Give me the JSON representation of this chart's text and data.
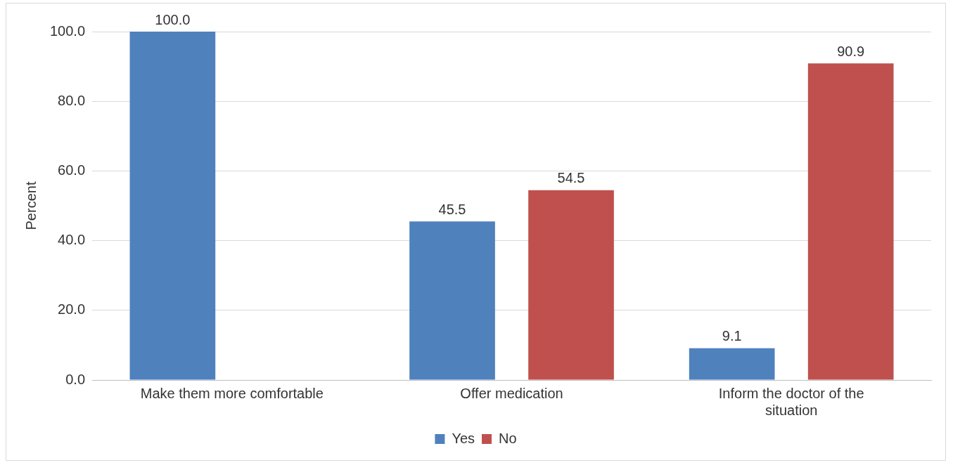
{
  "chart_data": {
    "type": "bar",
    "ylabel": "Percent",
    "categories": [
      "Make them more comfortable",
      "Offer medication",
      "Inform the doctor of the situation"
    ],
    "series": [
      {
        "name": "Yes",
        "color": "#4f81bd",
        "values": [
          100.0,
          45.5,
          9.1
        ],
        "value_labels": [
          "100.0",
          "45.5",
          "9.1"
        ]
      },
      {
        "name": "No",
        "color": "#c0504d",
        "values": [
          null,
          54.5,
          90.9
        ],
        "value_labels": [
          null,
          "54.5",
          "90.9"
        ]
      }
    ],
    "ylim": [
      0,
      100
    ],
    "yticks": [
      {
        "value": 0,
        "label": "0.0"
      },
      {
        "value": 20,
        "label": "20.0"
      },
      {
        "value": 40,
        "label": "40.0"
      },
      {
        "value": 60,
        "label": "60.0"
      },
      {
        "value": 80,
        "label": "80.0"
      },
      {
        "value": 100,
        "label": "100.0"
      }
    ],
    "grid": "y",
    "legend": "bottom"
  }
}
